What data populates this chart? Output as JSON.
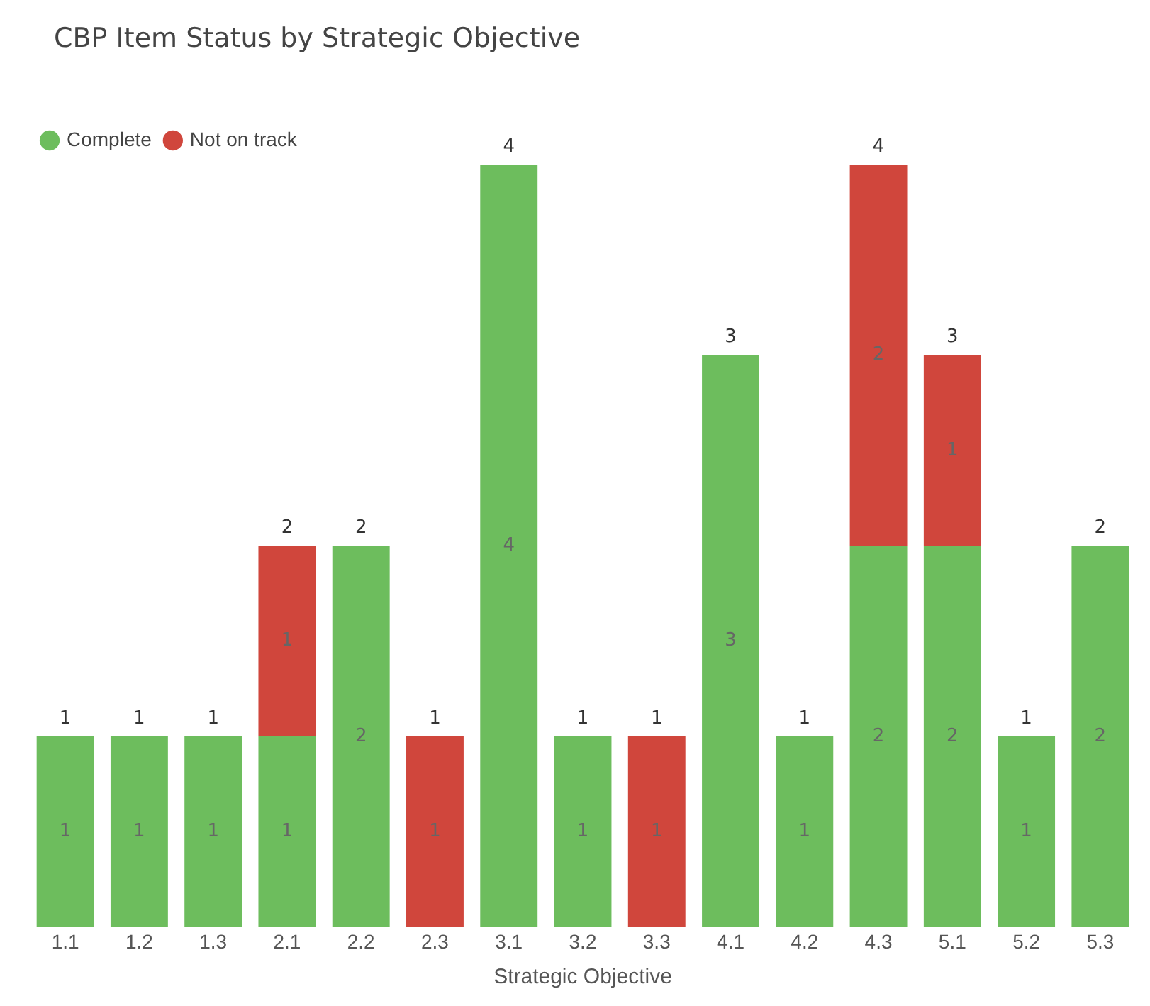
{
  "chart_data": {
    "type": "bar",
    "title": "CBP Item Status by Strategic Objective",
    "xlabel": "Strategic Objective",
    "categories": [
      "1.1",
      "1.2",
      "1.3",
      "2.1",
      "2.2",
      "2.3",
      "3.1",
      "3.2",
      "3.3",
      "4.1",
      "4.2",
      "4.3",
      "5.1",
      "5.2",
      "5.3"
    ],
    "stacked": true,
    "data_labels": true,
    "legend": "top left",
    "grid": false,
    "series": [
      {
        "name": "Complete",
        "color": "#6dbd5d",
        "values": [
          1,
          1,
          1,
          1,
          2,
          null,
          4,
          1,
          null,
          3,
          1,
          2,
          2,
          1,
          2
        ]
      },
      {
        "name": "Not on track",
        "color": "#d0463c",
        "values": [
          null,
          null,
          null,
          1,
          null,
          1,
          null,
          null,
          1,
          null,
          null,
          2,
          1,
          null,
          null
        ]
      }
    ],
    "totals": [
      "1",
      "1",
      "1",
      "2",
      "2",
      "1",
      "4",
      "1",
      "1",
      "3",
      "1",
      "4",
      "3",
      "1",
      "2"
    ]
  }
}
